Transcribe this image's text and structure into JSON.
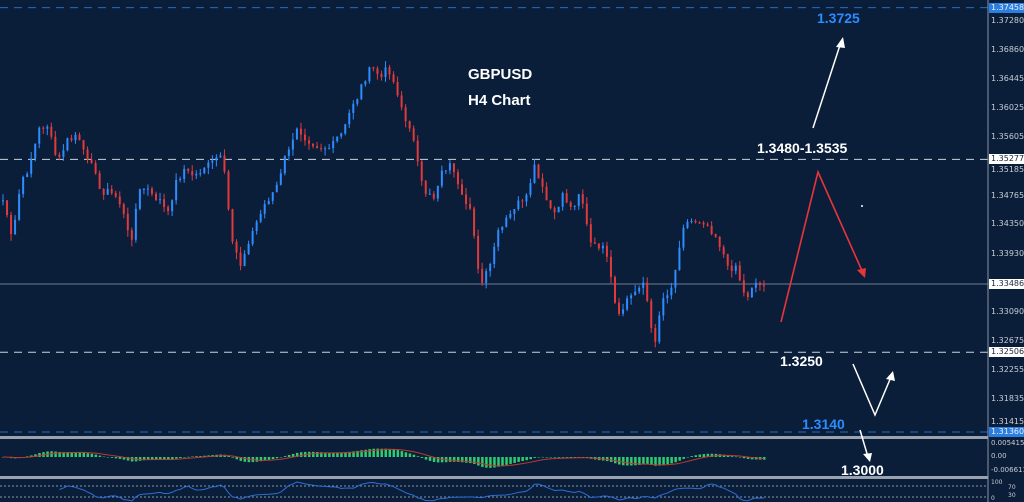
{
  "title": {
    "line1": "GBPUSD",
    "line2": "H4 Chart"
  },
  "colors": {
    "background": "#0a1e3a",
    "bull": "#2f8cff",
    "bear": "#e03a3a",
    "macd_hist": "#2ecc71",
    "macd_signal": "#c0392b",
    "rsi": "#2c6fd6",
    "annotation_blue": "#2a8cff"
  },
  "annotations": {
    "target_high": "1.3725",
    "resistance_zone": "1.3480-1.3535",
    "support": "1.3250",
    "support_low": "1.3140",
    "target_low": "1.3000"
  },
  "chart_data": {
    "type": "candlestick",
    "symbol": "GBPUSD",
    "timeframe": "H4",
    "ylim": [
      1.312,
      1.3755
    ],
    "price_path": [
      1.3469,
      1.3419,
      1.3498,
      1.352,
      1.3577,
      1.357,
      1.3527,
      1.3556,
      1.3563,
      1.3541,
      1.3505,
      1.3477,
      1.3484,
      1.3455,
      1.3412,
      1.3491,
      1.3484,
      1.3469,
      1.3455,
      1.3498,
      1.3513,
      1.3505,
      1.3513,
      1.3534,
      1.3534,
      1.3412,
      1.3369,
      1.3419,
      1.3448,
      1.3469,
      1.3498,
      1.3541,
      1.357,
      1.3548,
      1.3541,
      1.3541,
      1.3556,
      1.357,
      1.3599,
      1.3627,
      1.3663,
      1.3649,
      1.3656,
      1.362,
      1.3584,
      1.3541,
      1.3484,
      1.3469,
      1.3513,
      1.352,
      1.3484,
      1.3455,
      1.3347,
      1.3376,
      1.3426,
      1.3448,
      1.3462,
      1.3477,
      1.352,
      1.3484,
      1.3448,
      1.3477,
      1.3455,
      1.3477,
      1.3412,
      1.3405,
      1.3391,
      1.3304,
      1.3326,
      1.334,
      1.3347,
      1.3261,
      1.3326,
      1.334,
      1.3419,
      1.3441,
      1.3434,
      1.3426,
      1.3405,
      1.3376,
      1.3369,
      1.3326,
      1.3347,
      1.3347
    ],
    "price_levels": [
      {
        "value": "1.37458",
        "style": "dashed",
        "color": "#2a7fe0"
      },
      {
        "value": "1.35277",
        "style": "dashed",
        "color": "#ffffff"
      },
      {
        "value": "1.33486",
        "style": "solid",
        "color": "#8a94a6"
      },
      {
        "value": "1.32506",
        "style": "dashed",
        "color": "#ffffff"
      },
      {
        "value": "1.31360",
        "style": "dashed",
        "color": "#2a7fe0"
      }
    ],
    "y_ticks": [
      "1.37280",
      "1.36860",
      "1.36445",
      "1.36025",
      "1.35605",
      "1.35185",
      "1.34765",
      "1.34350",
      "1.33930",
      "1.33090",
      "1.32675",
      "1.32255",
      "1.31835",
      "1.31415"
    ],
    "macd_ticks": [
      "0.005415",
      "0.00",
      "-0.006611"
    ],
    "rsi_ticks": [
      "100",
      "70",
      "30",
      "0"
    ],
    "grid": false
  }
}
